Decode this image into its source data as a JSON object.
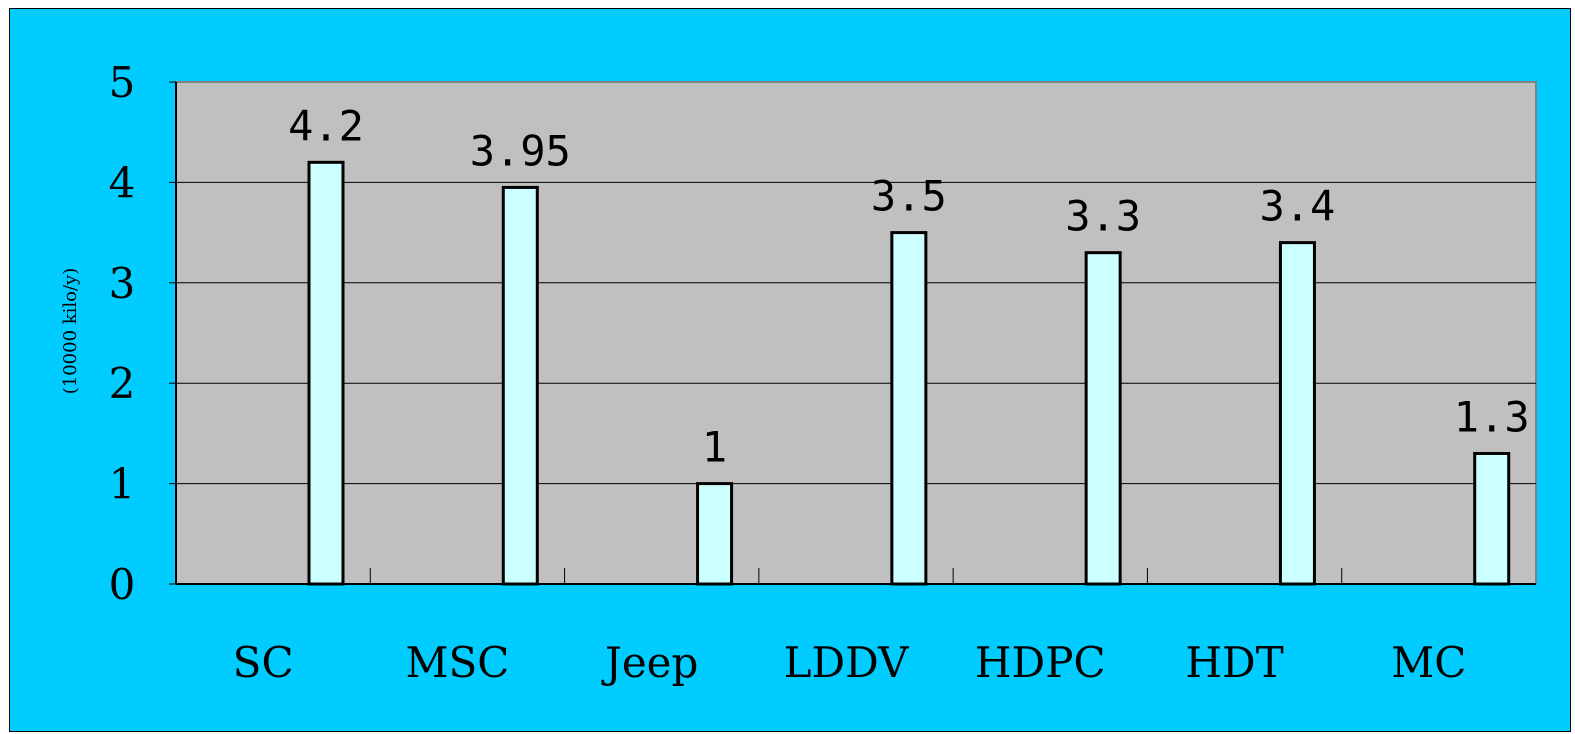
{
  "chart_data": {
    "type": "bar",
    "title": "",
    "xlabel": "",
    "ylabel": "(10000 kilo/y)",
    "categories": [
      "SC",
      "MSC",
      "Jeep",
      "LDDV",
      "HDPC",
      "HDT",
      "MC"
    ],
    "values": [
      4.2,
      3.95,
      1,
      3.5,
      3.3,
      3.4,
      1.3
    ],
    "value_labels": [
      "4.2",
      "3.95",
      "1",
      "3.5",
      "3.3",
      "3.4",
      "1.3"
    ],
    "ylim": [
      0,
      5
    ],
    "yticks": [
      "0",
      "1",
      "2",
      "3",
      "4",
      "5"
    ],
    "grid": true,
    "legend": "none",
    "colors": {
      "background": "#00ccff",
      "plot_area": "#c0c0c0",
      "bar_fill": "#ccffff",
      "bar_stroke": "#000000",
      "gridline": "#000000"
    }
  }
}
